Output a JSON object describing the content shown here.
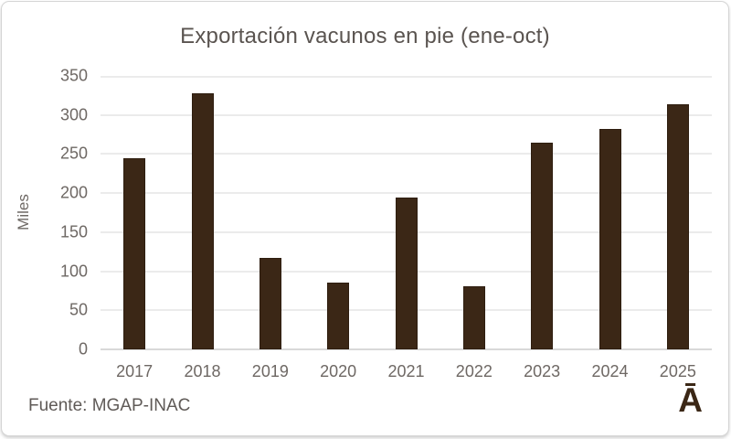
{
  "colors": {
    "background": "#ffffff",
    "border": "#d5d5d5",
    "bar": "#3b2716",
    "title_text": "#5a5450",
    "tick_text": "#6e6864",
    "gridline": "#ebebeb",
    "axis_line": "#d9d9d9",
    "logo": "#3b2716",
    "source_text": "#5f5a57"
  },
  "chart_data": {
    "type": "bar",
    "title": "Exportación vacunos en pie (ene-oct)",
    "categories": [
      "2017",
      "2018",
      "2019",
      "2020",
      "2021",
      "2022",
      "2023",
      "2024",
      "2025"
    ],
    "values": [
      245,
      328,
      117,
      86,
      194,
      81,
      265,
      282,
      314
    ],
    "xlabel": "",
    "ylabel": "Miles",
    "ylim": [
      0,
      350
    ],
    "yticks": [
      0,
      50,
      100,
      150,
      200,
      250,
      300,
      350
    ],
    "grid": true,
    "legend": false,
    "bar_color": "#3b2716"
  },
  "footer": {
    "source": "Fuente: MGAP-INAC",
    "logo": "Ā"
  }
}
